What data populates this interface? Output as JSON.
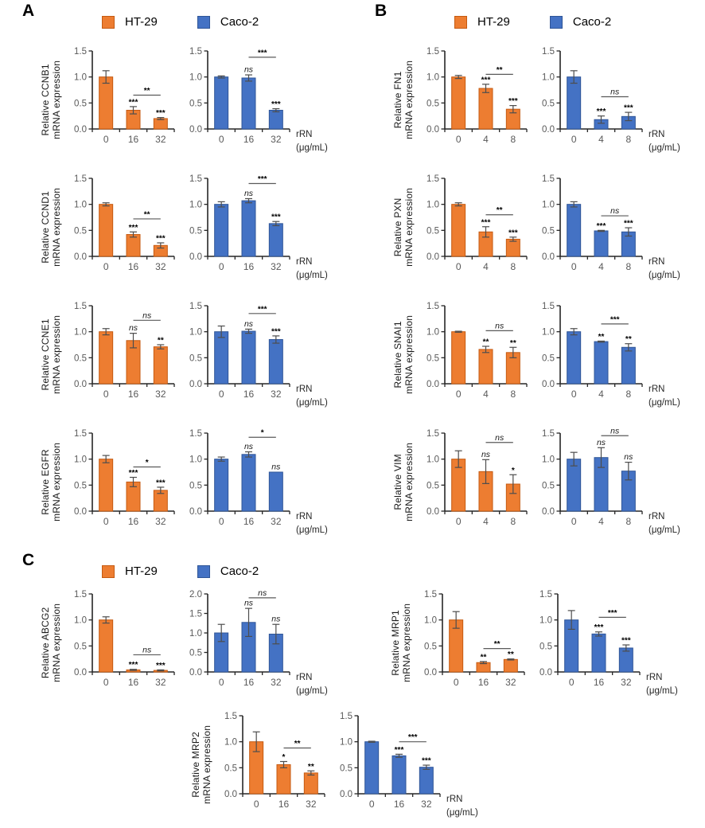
{
  "figure_title": "Relative mRNA expression bar charts",
  "colors": {
    "HT-29": {
      "fill": "#ED7D31",
      "border": "#C55A11"
    },
    "Caco-2": {
      "fill": "#4472C4",
      "border": "#2F5597"
    },
    "axis": "#262626",
    "tick_label": "#595959",
    "error_bar": "#4D4D4D",
    "bracket": "#5A5A5A"
  },
  "chart_data": {
    "type": "bar",
    "xlabel_lines": [
      "rRN",
      "(μg/mL)"
    ],
    "legend_entries": [
      "HT-29",
      "Caco-2"
    ],
    "panels": [
      {
        "label": "A",
        "show_legend": true,
        "rows": [
          {
            "gene": "CCNB1",
            "ylabel_lines": [
              "Relative CCNB1",
              "mRNA expression"
            ],
            "categories": [
              "0",
              "16",
              "32"
            ],
            "series": [
              {
                "name": "HT-29",
                "values": [
                  1.0,
                  0.36,
                  0.2
                ],
                "errors": [
                  0.12,
                  0.07,
                  0.02
                ],
                "bar_labels": [
                  "",
                  "***",
                  "***"
                ],
                "bracket": {
                  "from": 1,
                  "to": 2,
                  "label": "**",
                  "y": 0.65
                },
                "ylim": [
                  0,
                  1.5
                ],
                "ytick_step": 0.5
              },
              {
                "name": "Caco-2",
                "values": [
                  1.0,
                  0.98,
                  0.36
                ],
                "errors": [
                  0.02,
                  0.06,
                  0.03
                ],
                "bar_labels": [
                  "",
                  "ns",
                  "***"
                ],
                "bracket": {
                  "from": 1,
                  "to": 2,
                  "label": "***",
                  "y": 1.38
                },
                "ylim": [
                  0,
                  1.5
                ],
                "ytick_step": 0.5
              }
            ]
          },
          {
            "gene": "CCND1",
            "ylabel_lines": [
              "Relative CCND1",
              "mRNA expression"
            ],
            "categories": [
              "0",
              "16",
              "32"
            ],
            "series": [
              {
                "name": "HT-29",
                "values": [
                  1.0,
                  0.42,
                  0.21
                ],
                "errors": [
                  0.03,
                  0.05,
                  0.05
                ],
                "bar_labels": [
                  "",
                  "***",
                  "***"
                ],
                "bracket": {
                  "from": 1,
                  "to": 2,
                  "label": "**",
                  "y": 0.72
                },
                "ylim": [
                  0,
                  1.5
                ],
                "ytick_step": 0.5
              },
              {
                "name": "Caco-2",
                "values": [
                  1.0,
                  1.07,
                  0.63
                ],
                "errors": [
                  0.05,
                  0.04,
                  0.04
                ],
                "bar_labels": [
                  "",
                  "ns",
                  "***"
                ],
                "bracket": {
                  "from": 1,
                  "to": 2,
                  "label": "***",
                  "y": 1.4
                },
                "ylim": [
                  0,
                  1.5
                ],
                "ytick_step": 0.5
              }
            ]
          },
          {
            "gene": "CCNE1",
            "ylabel_lines": [
              "Relative CCNE1",
              "mRNA expression"
            ],
            "categories": [
              "0",
              "16",
              "32"
            ],
            "series": [
              {
                "name": "HT-29",
                "values": [
                  1.0,
                  0.83,
                  0.71
                ],
                "errors": [
                  0.06,
                  0.14,
                  0.04
                ],
                "bar_labels": [
                  "",
                  "ns",
                  "**"
                ],
                "bracket": {
                  "from": 1,
                  "to": 2,
                  "label": "ns",
                  "y": 1.22
                },
                "ylim": [
                  0,
                  1.5
                ],
                "ytick_step": 0.5
              },
              {
                "name": "Caco-2",
                "values": [
                  1.0,
                  1.01,
                  0.85
                ],
                "errors": [
                  0.11,
                  0.04,
                  0.07
                ],
                "bar_labels": [
                  "",
                  "ns",
                  "***"
                ],
                "bracket": {
                  "from": 1,
                  "to": 2,
                  "label": "***",
                  "y": 1.35
                },
                "ylim": [
                  0,
                  1.5
                ],
                "ytick_step": 0.5
              }
            ]
          },
          {
            "gene": "EGFR",
            "ylabel_lines": [
              "Relative EGFR",
              "mRNA expression"
            ],
            "categories": [
              "0",
              "16",
              "32"
            ],
            "series": [
              {
                "name": "HT-29",
                "values": [
                  1.0,
                  0.56,
                  0.4
                ],
                "errors": [
                  0.07,
                  0.09,
                  0.06
                ],
                "bar_labels": [
                  "",
                  "***",
                  "***"
                ],
                "bracket": {
                  "from": 1,
                  "to": 2,
                  "label": "*",
                  "y": 0.85
                },
                "ylim": [
                  0,
                  1.5
                ],
                "ytick_step": 0.5
              },
              {
                "name": "Caco-2",
                "values": [
                  1.0,
                  1.09,
                  0.75
                ],
                "errors": [
                  0.04,
                  0.05,
                  0.0
                ],
                "bar_labels": [
                  "",
                  "ns",
                  "ns"
                ],
                "bracket": {
                  "from": 1,
                  "to": 2,
                  "label": "*",
                  "y": 1.42
                },
                "ylim": [
                  0,
                  1.5
                ],
                "ytick_step": 0.5
              }
            ]
          }
        ]
      },
      {
        "label": "B",
        "show_legend": true,
        "rows": [
          {
            "gene": "FN1",
            "ylabel_lines": [
              "Relative FN1",
              "mRNA expression"
            ],
            "categories": [
              "0",
              "4",
              "8"
            ],
            "series": [
              {
                "name": "HT-29",
                "values": [
                  1.0,
                  0.78,
                  0.38
                ],
                "errors": [
                  0.03,
                  0.08,
                  0.07
                ],
                "bar_labels": [
                  "",
                  "***",
                  "***"
                ],
                "bracket": {
                  "from": 1,
                  "to": 2,
                  "label": "**",
                  "y": 1.05
                },
                "ylim": [
                  0,
                  1.5
                ],
                "ytick_step": 0.5
              },
              {
                "name": "Caco-2",
                "values": [
                  1.0,
                  0.18,
                  0.24
                ],
                "errors": [
                  0.12,
                  0.07,
                  0.08
                ],
                "bar_labels": [
                  "",
                  "***",
                  "***"
                ],
                "bracket": {
                  "from": 1,
                  "to": 2,
                  "label": "ns",
                  "y": 0.62
                },
                "ylim": [
                  0,
                  1.5
                ],
                "ytick_step": 0.5
              }
            ]
          },
          {
            "gene": "PXN",
            "ylabel_lines": [
              "Relative PXN",
              "mRNA expression"
            ],
            "categories": [
              "0",
              "4",
              "8"
            ],
            "series": [
              {
                "name": "HT-29",
                "values": [
                  1.0,
                  0.47,
                  0.33
                ],
                "errors": [
                  0.03,
                  0.1,
                  0.04
                ],
                "bar_labels": [
                  "",
                  "***",
                  "***"
                ],
                "bracket": {
                  "from": 1,
                  "to": 2,
                  "label": "**",
                  "y": 0.8
                },
                "ylim": [
                  0,
                  1.5
                ],
                "ytick_step": 0.5
              },
              {
                "name": "Caco-2",
                "values": [
                  1.0,
                  0.49,
                  0.47
                ],
                "errors": [
                  0.05,
                  0.01,
                  0.08
                ],
                "bar_labels": [
                  "",
                  "***",
                  "***"
                ],
                "bracket": {
                  "from": 1,
                  "to": 2,
                  "label": "ns",
                  "y": 0.78
                },
                "ylim": [
                  0,
                  1.5
                ],
                "ytick_step": 0.5
              }
            ]
          },
          {
            "gene": "SNAI1",
            "ylabel_lines": [
              "Relative SNAI1",
              "mRNA expression"
            ],
            "categories": [
              "0",
              "4",
              "8"
            ],
            "series": [
              {
                "name": "HT-29",
                "values": [
                  1.0,
                  0.66,
                  0.6
                ],
                "errors": [
                  0.01,
                  0.06,
                  0.1
                ],
                "bar_labels": [
                  "",
                  "**",
                  "**"
                ],
                "bracket": {
                  "from": 1,
                  "to": 2,
                  "label": "ns",
                  "y": 1.02
                },
                "ylim": [
                  0,
                  1.5
                ],
                "ytick_step": 0.5
              },
              {
                "name": "Caco-2",
                "values": [
                  1.0,
                  0.81,
                  0.7
                ],
                "errors": [
                  0.06,
                  0.01,
                  0.07
                ],
                "bar_labels": [
                  "",
                  "**",
                  "**"
                ],
                "bracket": {
                  "from": 1,
                  "to": 2,
                  "label": "***",
                  "y": 1.15
                },
                "ylim": [
                  0,
                  1.5
                ],
                "ytick_step": 0.5
              }
            ]
          },
          {
            "gene": "VIM",
            "ylabel_lines": [
              "Relative VIM",
              "mRNA expression"
            ],
            "categories": [
              "0",
              "4",
              "8"
            ],
            "series": [
              {
                "name": "HT-29",
                "values": [
                  1.0,
                  0.76,
                  0.52
                ],
                "errors": [
                  0.16,
                  0.23,
                  0.18
                ],
                "bar_labels": [
                  "",
                  "ns",
                  "*"
                ],
                "bracket": {
                  "from": 1,
                  "to": 2,
                  "label": "ns",
                  "y": 1.32
                },
                "ylim": [
                  0,
                  1.5
                ],
                "ytick_step": 0.5
              },
              {
                "name": "Caco-2",
                "values": [
                  1.0,
                  1.03,
                  0.77
                ],
                "errors": [
                  0.13,
                  0.19,
                  0.17
                ],
                "bar_labels": [
                  "",
                  "ns",
                  "ns"
                ],
                "bracket": {
                  "from": 1,
                  "to": 2,
                  "label": "ns",
                  "y": 1.45
                },
                "ylim": [
                  0,
                  1.5
                ],
                "ytick_step": 0.5
              }
            ]
          }
        ]
      },
      {
        "label": "C",
        "show_legend": true,
        "rows": [
          {
            "gene": "ABCG2",
            "placement": "row1-left",
            "ylabel_lines": [
              "Relative ABCG2",
              "mRNA expression"
            ],
            "categories": [
              "0",
              "16",
              "32"
            ],
            "series": [
              {
                "name": "HT-29",
                "values": [
                  1.0,
                  0.04,
                  0.03
                ],
                "errors": [
                  0.06,
                  0.01,
                  0.01
                ],
                "bar_labels": [
                  "",
                  "***",
                  "***"
                ],
                "bracket": {
                  "from": 1,
                  "to": 2,
                  "label": "ns",
                  "y": 0.33
                },
                "ylim": [
                  0,
                  1.5
                ],
                "ytick_step": 0.5
              },
              {
                "name": "Caco-2",
                "values": [
                  1.0,
                  1.27,
                  0.97
                ],
                "errors": [
                  0.22,
                  0.36,
                  0.25
                ],
                "bar_labels": [
                  "",
                  "ns",
                  "ns"
                ],
                "bracket": {
                  "from": 1,
                  "to": 2,
                  "label": "ns",
                  "y": 1.9
                },
                "ylim": [
                  0,
                  2.0
                ],
                "ytick_step": 0.5
              }
            ]
          },
          {
            "gene": "MRP1",
            "placement": "row1-right",
            "ylabel_lines": [
              "Relative MRP1",
              "mRNA expression"
            ],
            "categories": [
              "0",
              "16",
              "32"
            ],
            "series": [
              {
                "name": "HT-29",
                "values": [
                  1.0,
                  0.18,
                  0.24
                ],
                "errors": [
                  0.16,
                  0.02,
                  0.01
                ],
                "bar_labels": [
                  "",
                  "**",
                  "**"
                ],
                "bracket": {
                  "from": 1,
                  "to": 2,
                  "label": "**",
                  "y": 0.45
                },
                "ylim": [
                  0,
                  1.5
                ],
                "ytick_step": 0.5
              },
              {
                "name": "Caco-2",
                "values": [
                  1.0,
                  0.73,
                  0.46
                ],
                "errors": [
                  0.18,
                  0.04,
                  0.06
                ],
                "bar_labels": [
                  "",
                  "***",
                  "***"
                ],
                "bracket": {
                  "from": 1,
                  "to": 2,
                  "label": "***",
                  "y": 1.05
                },
                "ylim": [
                  0,
                  1.5
                ],
                "ytick_step": 0.5
              }
            ]
          },
          {
            "gene": "MRP2",
            "placement": "row2-center",
            "ylabel_lines": [
              "Relative MRP2",
              "mRNA expression"
            ],
            "categories": [
              "0",
              "16",
              "32"
            ],
            "series": [
              {
                "name": "HT-29",
                "values": [
                  1.0,
                  0.56,
                  0.4
                ],
                "errors": [
                  0.19,
                  0.06,
                  0.04
                ],
                "bar_labels": [
                  "",
                  "*",
                  "**"
                ],
                "bracket": {
                  "from": 1,
                  "to": 2,
                  "label": "**",
                  "y": 0.88
                },
                "ylim": [
                  0,
                  1.5
                ],
                "ytick_step": 0.5
              },
              {
                "name": "Caco-2",
                "values": [
                  1.0,
                  0.73,
                  0.51
                ],
                "errors": [
                  0.01,
                  0.03,
                  0.04
                ],
                "bar_labels": [
                  "",
                  "***",
                  "***"
                ],
                "bracket": {
                  "from": 1,
                  "to": 2,
                  "label": "***",
                  "y": 1.0
                },
                "ylim": [
                  0,
                  1.5
                ],
                "ytick_step": 0.5
              }
            ]
          }
        ]
      }
    ]
  }
}
